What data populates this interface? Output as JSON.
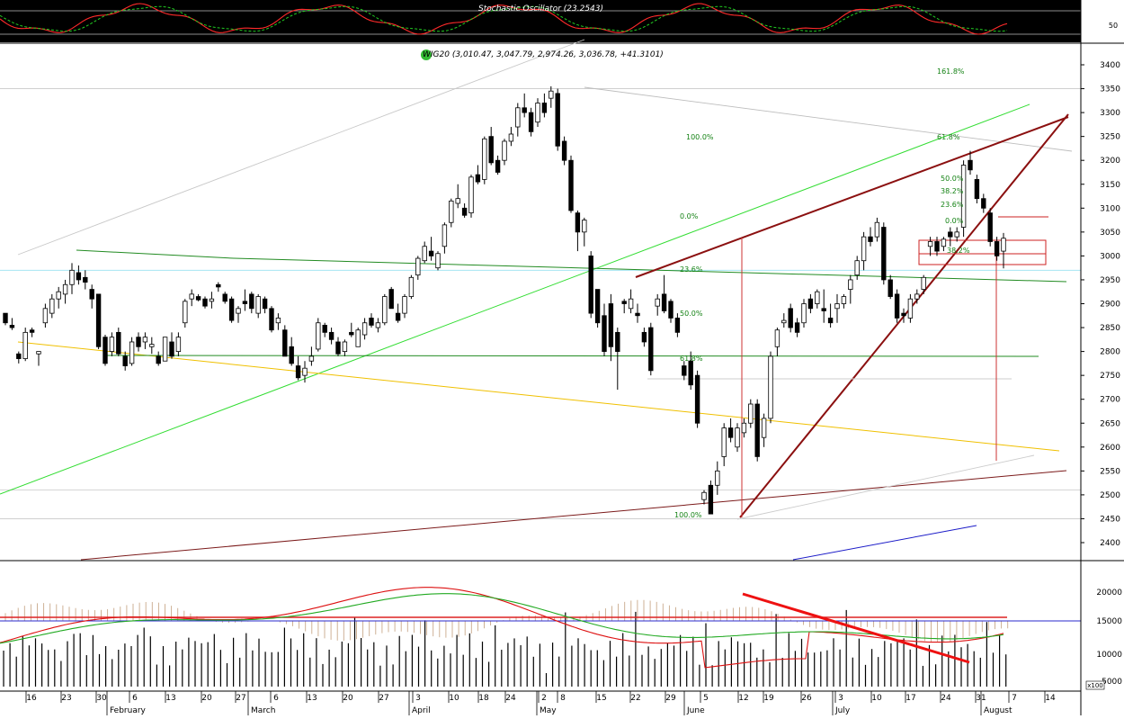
{
  "chart_data": {
    "type": "candlestick",
    "instrument": "WIG20",
    "header_text": "WIG20 (3,010.47, 3,047.79, 2,974.26, 3,036.78, +41.3101)",
    "ohlc_last": {
      "open": 3010.47,
      "high": 3047.79,
      "low": 2974.26,
      "close": 3036.78,
      "change": 41.3101
    },
    "price_axis": {
      "min": 2380,
      "max": 3430,
      "ticks": [
        3400,
        3350,
        3300,
        3250,
        3200,
        3150,
        3100,
        3050,
        3000,
        2950,
        2900,
        2850,
        2800,
        2750,
        2700,
        2650,
        2600,
        2550,
        2500,
        2450,
        2400
      ]
    },
    "oscillator_panel": {
      "label": "Stochastic Oscillator (23.2543)",
      "tick": "50"
    },
    "volume_panel": {
      "ticks": [
        20000,
        15000,
        10000,
        5000
      ],
      "unit_label": "x100"
    },
    "x_axis": {
      "day_labels": [
        "16",
        "23",
        "30",
        "6",
        "13",
        "20",
        "27",
        "6",
        "13",
        "20",
        "27",
        "3",
        "10",
        "18",
        "24",
        "2",
        "8",
        "15",
        "22",
        "29",
        "5",
        "12",
        "19",
        "26",
        "3",
        "10",
        "17",
        "24",
        "31",
        "7",
        "14"
      ],
      "month_labels": [
        "February",
        "March",
        "April",
        "May",
        "June",
        "July",
        "August"
      ]
    },
    "fib_labels": [
      {
        "text": "161.8%"
      },
      {
        "text": "100.0%"
      },
      {
        "text": "61.8%"
      },
      {
        "text": "50.0%"
      },
      {
        "text": "38.2%"
      },
      {
        "text": "23.6%"
      },
      {
        "text": "0.0%"
      },
      {
        "text": "0.0%"
      },
      {
        "text": "23.6%"
      },
      {
        "text": "38.2%"
      },
      {
        "text": "50.0%"
      },
      {
        "text": "61.8%"
      },
      {
        "text": "100.0%"
      }
    ],
    "candles": [
      [
        2880,
        2880,
        2855,
        2860
      ],
      [
        2855,
        2870,
        2845,
        2850
      ],
      [
        2795,
        2800,
        2775,
        2785
      ],
      [
        2785,
        2850,
        2780,
        2840
      ],
      [
        2845,
        2850,
        2830,
        2840
      ],
      [
        2795,
        2800,
        2770,
        2800
      ],
      [
        2860,
        2900,
        2850,
        2890
      ],
      [
        2880,
        2920,
        2870,
        2910
      ],
      [
        2910,
        2935,
        2890,
        2925
      ],
      [
        2920,
        2950,
        2900,
        2940
      ],
      [
        2940,
        2985,
        2920,
        2970
      ],
      [
        2965,
        2980,
        2940,
        2950
      ],
      [
        2955,
        2970,
        2930,
        2945
      ],
      [
        2930,
        2940,
        2890,
        2910
      ],
      [
        2920,
        2920,
        2805,
        2810
      ],
      [
        2830,
        2835,
        2770,
        2775
      ],
      [
        2800,
        2840,
        2790,
        2830
      ],
      [
        2840,
        2850,
        2790,
        2795
      ],
      [
        2790,
        2800,
        2760,
        2770
      ],
      [
        2775,
        2830,
        2770,
        2820
      ],
      [
        2830,
        2840,
        2800,
        2810
      ],
      [
        2820,
        2840,
        2805,
        2830
      ],
      [
        2810,
        2830,
        2795,
        2815
      ],
      [
        2790,
        2800,
        2770,
        2775
      ],
      [
        2780,
        2830,
        2780,
        2830
      ],
      [
        2820,
        2840,
        2785,
        2790
      ],
      [
        2800,
        2840,
        2790,
        2830
      ],
      [
        2860,
        2910,
        2850,
        2905
      ],
      [
        2910,
        2930,
        2895,
        2920
      ],
      [
        2915,
        2920,
        2905,
        2908
      ],
      [
        2910,
        2915,
        2890,
        2895
      ],
      [
        2905,
        2925,
        2890,
        2910
      ],
      [
        2940,
        2945,
        2925,
        2935
      ],
      [
        2920,
        2925,
        2900,
        2905
      ],
      [
        2910,
        2915,
        2860,
        2865
      ],
      [
        2880,
        2895,
        2860,
        2890
      ],
      [
        2905,
        2930,
        2885,
        2900
      ],
      [
        2920,
        2925,
        2880,
        2890
      ],
      [
        2880,
        2920,
        2870,
        2915
      ],
      [
        2910,
        2915,
        2880,
        2890
      ],
      [
        2890,
        2895,
        2840,
        2845
      ],
      [
        2860,
        2880,
        2845,
        2870
      ],
      [
        2845,
        2855,
        2790,
        2790
      ],
      [
        2810,
        2830,
        2770,
        2775
      ],
      [
        2770,
        2790,
        2740,
        2745
      ],
      [
        2750,
        2780,
        2735,
        2765
      ],
      [
        2780,
        2810,
        2770,
        2790
      ],
      [
        2805,
        2870,
        2800,
        2860
      ],
      [
        2855,
        2860,
        2830,
        2840
      ],
      [
        2840,
        2850,
        2815,
        2825
      ],
      [
        2820,
        2830,
        2790,
        2795
      ],
      [
        2800,
        2825,
        2790,
        2820
      ],
      [
        2840,
        2860,
        2830,
        2835
      ],
      [
        2810,
        2850,
        2810,
        2845
      ],
      [
        2835,
        2870,
        2825,
        2860
      ],
      [
        2870,
        2880,
        2850,
        2855
      ],
      [
        2850,
        2870,
        2840,
        2860
      ],
      [
        2860,
        2920,
        2855,
        2915
      ],
      [
        2930,
        2935,
        2890,
        2890
      ],
      [
        2880,
        2900,
        2860,
        2865
      ],
      [
        2880,
        2920,
        2870,
        2915
      ],
      [
        2915,
        2960,
        2910,
        2955
      ],
      [
        2960,
        3000,
        2950,
        2995
      ],
      [
        2990,
        3030,
        2985,
        3020
      ],
      [
        3010,
        3040,
        2990,
        3000
      ],
      [
        2975,
        3010,
        2970,
        3005
      ],
      [
        3020,
        3070,
        3005,
        3065
      ],
      [
        3070,
        3120,
        3060,
        3115
      ],
      [
        3110,
        3150,
        3100,
        3120
      ],
      [
        3100,
        3110,
        3080,
        3085
      ],
      [
        3090,
        3170,
        3080,
        3165
      ],
      [
        3170,
        3190,
        3150,
        3155
      ],
      [
        3160,
        3250,
        3150,
        3245
      ],
      [
        3250,
        3270,
        3190,
        3195
      ],
      [
        3200,
        3210,
        3170,
        3175
      ],
      [
        3200,
        3245,
        3190,
        3240
      ],
      [
        3240,
        3270,
        3230,
        3255
      ],
      [
        3270,
        3320,
        3250,
        3310
      ],
      [
        3310,
        3340,
        3290,
        3300
      ],
      [
        3300,
        3310,
        3250,
        3260
      ],
      [
        3280,
        3330,
        3270,
        3320
      ],
      [
        3320,
        3340,
        3290,
        3300
      ],
      [
        3330,
        3355,
        3310,
        3345
      ],
      [
        3340,
        3350,
        3220,
        3230
      ],
      [
        3240,
        3250,
        3190,
        3200
      ],
      [
        3200,
        3210,
        3090,
        3095
      ],
      [
        3090,
        3095,
        3010,
        3050
      ],
      [
        3050,
        3080,
        3020,
        3075
      ],
      [
        3000,
        3010,
        2870,
        2880
      ],
      [
        2930,
        2930,
        2850,
        2860
      ],
      [
        2875,
        2900,
        2790,
        2800
      ],
      [
        2900,
        2920,
        2780,
        2810
      ],
      [
        2840,
        2850,
        2720,
        2800
      ],
      [
        2905,
        2910,
        2880,
        2900
      ],
      [
        2890,
        2930,
        2880,
        2910
      ],
      [
        2880,
        2900,
        2860,
        2875
      ],
      [
        2840,
        2850,
        2810,
        2820
      ],
      [
        2850,
        2860,
        2750,
        2760
      ],
      [
        2895,
        2920,
        2875,
        2910
      ],
      [
        2920,
        2960,
        2880,
        2885
      ],
      [
        2905,
        2910,
        2860,
        2870
      ],
      [
        2870,
        2880,
        2830,
        2840
      ],
      [
        2770,
        2780,
        2740,
        2750
      ],
      [
        2780,
        2800,
        2720,
        2730
      ],
      [
        2750,
        2760,
        2640,
        2650
      ],
      [
        2490,
        2510,
        2480,
        2505
      ],
      [
        2520,
        2530,
        2460,
        2460
      ],
      [
        2520,
        2570,
        2500,
        2550
      ],
      [
        2580,
        2650,
        2560,
        2640
      ],
      [
        2640,
        2660,
        2610,
        2620
      ],
      [
        2600,
        2650,
        2590,
        2640
      ],
      [
        2630,
        2660,
        2620,
        2650
      ],
      [
        2650,
        2700,
        2640,
        2690
      ],
      [
        2690,
        2700,
        2570,
        2580
      ],
      [
        2620,
        2670,
        2600,
        2660
      ],
      [
        2660,
        2800,
        2650,
        2790
      ],
      [
        2810,
        2850,
        2790,
        2845
      ],
      [
        2860,
        2880,
        2850,
        2865
      ],
      [
        2890,
        2900,
        2840,
        2850
      ],
      [
        2860,
        2870,
        2830,
        2840
      ],
      [
        2860,
        2910,
        2850,
        2900
      ],
      [
        2910,
        2920,
        2880,
        2890
      ],
      [
        2900,
        2930,
        2890,
        2925
      ],
      [
        2890,
        2930,
        2860,
        2885
      ],
      [
        2870,
        2900,
        2850,
        2860
      ],
      [
        2890,
        2920,
        2860,
        2900
      ],
      [
        2900,
        2920,
        2890,
        2915
      ],
      [
        2930,
        2960,
        2900,
        2950
      ],
      [
        2960,
        3000,
        2950,
        2990
      ],
      [
        2990,
        3050,
        2970,
        3040
      ],
      [
        3040,
        3060,
        3020,
        3030
      ],
      [
        3040,
        3080,
        3030,
        3070
      ],
      [
        3060,
        3070,
        2940,
        2950
      ],
      [
        2950,
        2960,
        2910,
        2915
      ],
      [
        2920,
        2930,
        2860,
        2870
      ],
      [
        2880,
        2890,
        2860,
        2875
      ],
      [
        2870,
        2920,
        2860,
        2910
      ],
      [
        2910,
        2930,
        2900,
        2920
      ],
      [
        2930,
        2960,
        2920,
        2955
      ],
      [
        3020,
        3040,
        3000,
        3030
      ],
      [
        3030,
        3040,
        3000,
        3010
      ],
      [
        3020,
        3040,
        3010,
        3035
      ],
      [
        3050,
        3060,
        3020,
        3040
      ],
      [
        3040,
        3060,
        3030,
        3050
      ],
      [
        3060,
        3200,
        3040,
        3190
      ],
      [
        3200,
        3220,
        3170,
        3180
      ],
      [
        3160,
        3170,
        3110,
        3120
      ],
      [
        3120,
        3130,
        3090,
        3100
      ],
      [
        3090,
        3100,
        3020,
        3030
      ],
      [
        3030,
        3040,
        2990,
        3000
      ],
      [
        3010,
        3048,
        2974,
        3037
      ]
    ]
  }
}
